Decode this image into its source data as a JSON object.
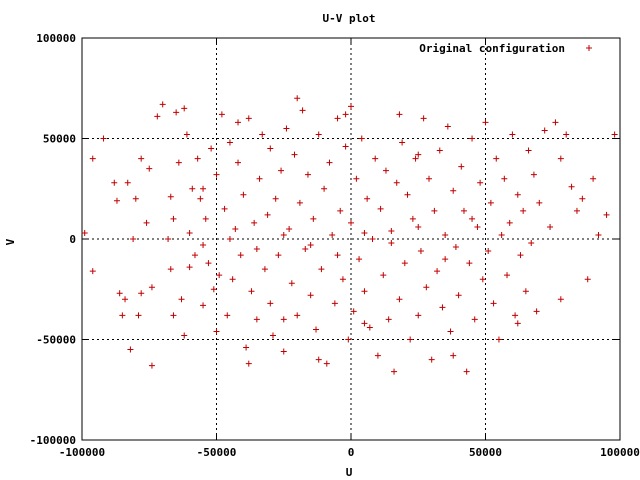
{
  "chart_data": {
    "type": "scatter",
    "title": "U-V plot",
    "xlabel": "U",
    "ylabel": "V",
    "xlim": [
      -100000,
      100000
    ],
    "ylim": [
      -100000,
      100000
    ],
    "grid": true,
    "legend_position": "top-right",
    "x_ticks": [
      "-100000",
      "-50000",
      "0",
      "50000",
      "100000"
    ],
    "y_ticks": [
      "100000",
      "50000",
      "0",
      "-50000",
      "-100000"
    ],
    "series": [
      {
        "name": "Original configuration",
        "color": "#c00000",
        "marker": "plus",
        "points": [
          [
            -99000,
            3000
          ],
          [
            -96000,
            40000
          ],
          [
            -96000,
            -16000
          ],
          [
            -92000,
            50000
          ],
          [
            -88000,
            28000
          ],
          [
            -87000,
            19000
          ],
          [
            -86000,
            -27000
          ],
          [
            -85000,
            -38000
          ],
          [
            -84000,
            -30000
          ],
          [
            -83000,
            28000
          ],
          [
            -82000,
            -55000
          ],
          [
            -81000,
            0
          ],
          [
            -80000,
            20000
          ],
          [
            -79000,
            -38000
          ],
          [
            -78000,
            -27000
          ],
          [
            -76000,
            8000
          ],
          [
            -75000,
            35000
          ],
          [
            -74000,
            -24000
          ],
          [
            -74000,
            -63000
          ],
          [
            -72000,
            61000
          ],
          [
            -70000,
            67000
          ],
          [
            -68000,
            0
          ],
          [
            -67000,
            21000
          ],
          [
            -67000,
            -15000
          ],
          [
            -66000,
            10000
          ],
          [
            -66000,
            -38000
          ],
          [
            -65000,
            63000
          ],
          [
            -64000,
            38000
          ],
          [
            -63000,
            -30000
          ],
          [
            -62000,
            65000
          ],
          [
            -61000,
            52000
          ],
          [
            -60000,
            3000
          ],
          [
            -60000,
            -14000
          ],
          [
            -59000,
            25000
          ],
          [
            -58000,
            -8000
          ],
          [
            -57000,
            40000
          ],
          [
            -56000,
            20000
          ],
          [
            -55000,
            -3000
          ],
          [
            -55000,
            -33000
          ],
          [
            -54000,
            10000
          ],
          [
            -53000,
            -12000
          ],
          [
            -52000,
            45000
          ],
          [
            -51000,
            -25000
          ],
          [
            -50000,
            32000
          ],
          [
            -50000,
            -46000
          ],
          [
            -49000,
            -18000
          ],
          [
            -48000,
            62000
          ],
          [
            -47000,
            15000
          ],
          [
            -46000,
            -38000
          ],
          [
            -45000,
            48000
          ],
          [
            -44000,
            -20000
          ],
          [
            -43000,
            5000
          ],
          [
            -42000,
            38000
          ],
          [
            -41000,
            -8000
          ],
          [
            -40000,
            22000
          ],
          [
            -39000,
            -54000
          ],
          [
            -38000,
            60000
          ],
          [
            -37000,
            -26000
          ],
          [
            -36000,
            8000
          ],
          [
            -35000,
            -40000
          ],
          [
            -34000,
            30000
          ],
          [
            -33000,
            52000
          ],
          [
            -32000,
            -15000
          ],
          [
            -31000,
            12000
          ],
          [
            -30000,
            -32000
          ],
          [
            -30000,
            45000
          ],
          [
            -29000,
            -48000
          ],
          [
            -28000,
            20000
          ],
          [
            -27000,
            -8000
          ],
          [
            -26000,
            34000
          ],
          [
            -25000,
            -56000
          ],
          [
            -24000,
            55000
          ],
          [
            -23000,
            5000
          ],
          [
            -22000,
            -22000
          ],
          [
            -21000,
            42000
          ],
          [
            -20000,
            70000
          ],
          [
            -20000,
            -38000
          ],
          [
            -19000,
            18000
          ],
          [
            -18000,
            64000
          ],
          [
            -17000,
            -5000
          ],
          [
            -16000,
            32000
          ],
          [
            -15000,
            -28000
          ],
          [
            -14000,
            10000
          ],
          [
            -13000,
            -45000
          ],
          [
            -12000,
            52000
          ],
          [
            -11000,
            -15000
          ],
          [
            -10000,
            25000
          ],
          [
            -9000,
            -62000
          ],
          [
            -8000,
            38000
          ],
          [
            -7000,
            2000
          ],
          [
            -6000,
            -32000
          ],
          [
            -5000,
            60000
          ],
          [
            -4000,
            14000
          ],
          [
            -3000,
            -20000
          ],
          [
            -2000,
            46000
          ],
          [
            -1000,
            -50000
          ],
          [
            0,
            66000
          ],
          [
            0,
            8000
          ],
          [
            1000,
            -36000
          ],
          [
            2000,
            30000
          ],
          [
            3000,
            -10000
          ],
          [
            4000,
            50000
          ],
          [
            5000,
            -26000
          ],
          [
            6000,
            20000
          ],
          [
            7000,
            -44000
          ],
          [
            8000,
            0
          ],
          [
            9000,
            40000
          ],
          [
            10000,
            -58000
          ],
          [
            11000,
            15000
          ],
          [
            12000,
            -18000
          ],
          [
            13000,
            34000
          ],
          [
            14000,
            -40000
          ],
          [
            15000,
            4000
          ],
          [
            16000,
            -66000
          ],
          [
            17000,
            28000
          ],
          [
            18000,
            -30000
          ],
          [
            19000,
            48000
          ],
          [
            20000,
            -12000
          ],
          [
            21000,
            22000
          ],
          [
            22000,
            -50000
          ],
          [
            23000,
            10000
          ],
          [
            24000,
            40000
          ],
          [
            25000,
            -38000
          ],
          [
            26000,
            -6000
          ],
          [
            27000,
            60000
          ],
          [
            28000,
            -24000
          ],
          [
            29000,
            30000
          ],
          [
            30000,
            -60000
          ],
          [
            31000,
            14000
          ],
          [
            32000,
            -16000
          ],
          [
            33000,
            44000
          ],
          [
            34000,
            -34000
          ],
          [
            35000,
            2000
          ],
          [
            36000,
            56000
          ],
          [
            37000,
            -46000
          ],
          [
            38000,
            24000
          ],
          [
            39000,
            -4000
          ],
          [
            40000,
            -28000
          ],
          [
            41000,
            36000
          ],
          [
            42000,
            14000
          ],
          [
            43000,
            -66000
          ],
          [
            44000,
            -12000
          ],
          [
            45000,
            50000
          ],
          [
            46000,
            -40000
          ],
          [
            47000,
            6000
          ],
          [
            48000,
            28000
          ],
          [
            49000,
            -20000
          ],
          [
            50000,
            58000
          ],
          [
            51000,
            -6000
          ],
          [
            52000,
            18000
          ],
          [
            53000,
            -32000
          ],
          [
            54000,
            40000
          ],
          [
            55000,
            -50000
          ],
          [
            56000,
            2000
          ],
          [
            57000,
            30000
          ],
          [
            58000,
            -18000
          ],
          [
            59000,
            8000
          ],
          [
            60000,
            52000
          ],
          [
            61000,
            -38000
          ],
          [
            62000,
            22000
          ],
          [
            63000,
            -8000
          ],
          [
            64000,
            14000
          ],
          [
            65000,
            -26000
          ],
          [
            66000,
            44000
          ],
          [
            67000,
            -2000
          ],
          [
            68000,
            32000
          ],
          [
            69000,
            -36000
          ],
          [
            70000,
            18000
          ],
          [
            72000,
            54000
          ],
          [
            74000,
            6000
          ],
          [
            76000,
            58000
          ],
          [
            78000,
            -30000
          ],
          [
            80000,
            52000
          ],
          [
            82000,
            26000
          ],
          [
            84000,
            14000
          ],
          [
            86000,
            20000
          ],
          [
            88000,
            -20000
          ],
          [
            90000,
            30000
          ],
          [
            92000,
            2000
          ],
          [
            95000,
            12000
          ],
          [
            98000,
            52000
          ],
          [
            -45000,
            0
          ],
          [
            -35000,
            -5000
          ],
          [
            -25000,
            2000
          ],
          [
            -15000,
            -3000
          ],
          [
            -5000,
            -8000
          ],
          [
            5000,
            3000
          ],
          [
            15000,
            -2000
          ],
          [
            25000,
            6000
          ],
          [
            35000,
            -10000
          ],
          [
            45000,
            10000
          ],
          [
            -55000,
            25000
          ],
          [
            -25000,
            -40000
          ],
          [
            5000,
            -42000
          ],
          [
            25000,
            42000
          ],
          [
            -42000,
            58000
          ],
          [
            -12000,
            -60000
          ],
          [
            18000,
            62000
          ],
          [
            38000,
            -58000
          ],
          [
            -62000,
            -48000
          ],
          [
            62000,
            -42000
          ],
          [
            -78000,
            40000
          ],
          [
            78000,
            40000
          ],
          [
            -38000,
            -62000
          ],
          [
            -2000,
            62000
          ]
        ]
      }
    ]
  }
}
